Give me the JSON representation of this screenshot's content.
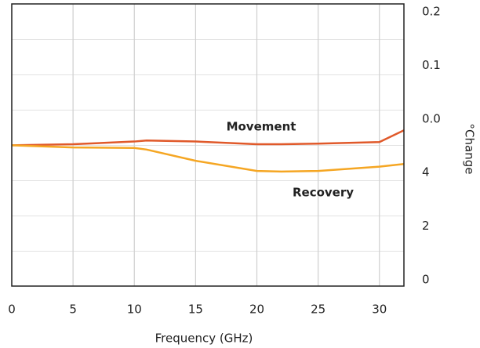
{
  "chart_data": {
    "type": "line",
    "xlabel": "Frequency (GHz)",
    "ylabel": "°Change",
    "x": [
      0,
      5,
      10,
      11,
      15,
      20,
      22,
      25,
      30,
      32
    ],
    "series": [
      {
        "name": "Movement",
        "color": "#e0592a",
        "values": [
          2.51,
          2.53,
          2.58,
          2.6,
          2.58,
          2.53,
          2.53,
          2.54,
          2.57,
          2.79
        ]
      },
      {
        "name": "Recovery",
        "color": "#f5a623",
        "values": [
          2.51,
          2.47,
          2.46,
          2.43,
          2.22,
          2.03,
          2.02,
          2.03,
          2.11,
          2.16
        ]
      }
    ],
    "xlim": [
      0,
      32
    ],
    "xticks": [
      0,
      5,
      10,
      15,
      20,
      25,
      30
    ],
    "ylim": [
      -0.12,
      5.15
    ],
    "yticks": [
      {
        "value": 0,
        "label": "0"
      },
      {
        "value": 1,
        "label": "2"
      },
      {
        "value": 2,
        "label": "4"
      },
      {
        "value": 3,
        "label": "0.0"
      },
      {
        "value": 4,
        "label": "0.1"
      },
      {
        "value": 5,
        "label": "0.2"
      }
    ],
    "grid": true
  }
}
